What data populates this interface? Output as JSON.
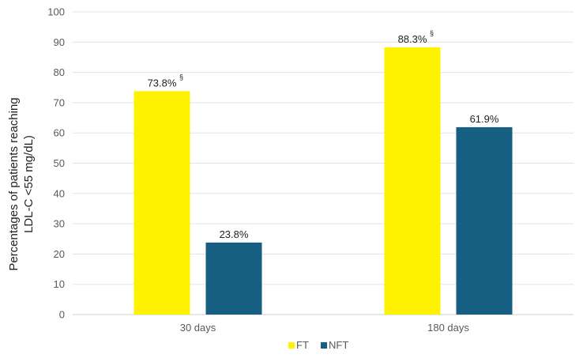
{
  "chart_data": {
    "type": "bar",
    "categories": [
      "30 days",
      "180 days"
    ],
    "series": [
      {
        "name": "FT",
        "color": "#FFF200",
        "values": [
          73.8,
          88.3
        ],
        "labels": [
          "73.8%",
          "88.3%"
        ],
        "superscripts": [
          "§",
          "§"
        ]
      },
      {
        "name": "NFT",
        "color": "#165E82",
        "values": [
          23.8,
          61.9
        ],
        "labels": [
          "23.8%",
          "61.9%"
        ],
        "superscripts": [
          "",
          ""
        ]
      }
    ],
    "ylabel_lines": [
      "Percentages of patients reaching",
      "LDL-C <55 mg/dL)"
    ],
    "ylim": [
      0,
      100
    ],
    "yticks": [
      0,
      10,
      20,
      30,
      40,
      50,
      60,
      70,
      80,
      90,
      100
    ],
    "grid": true,
    "legend_position": "bottom"
  }
}
